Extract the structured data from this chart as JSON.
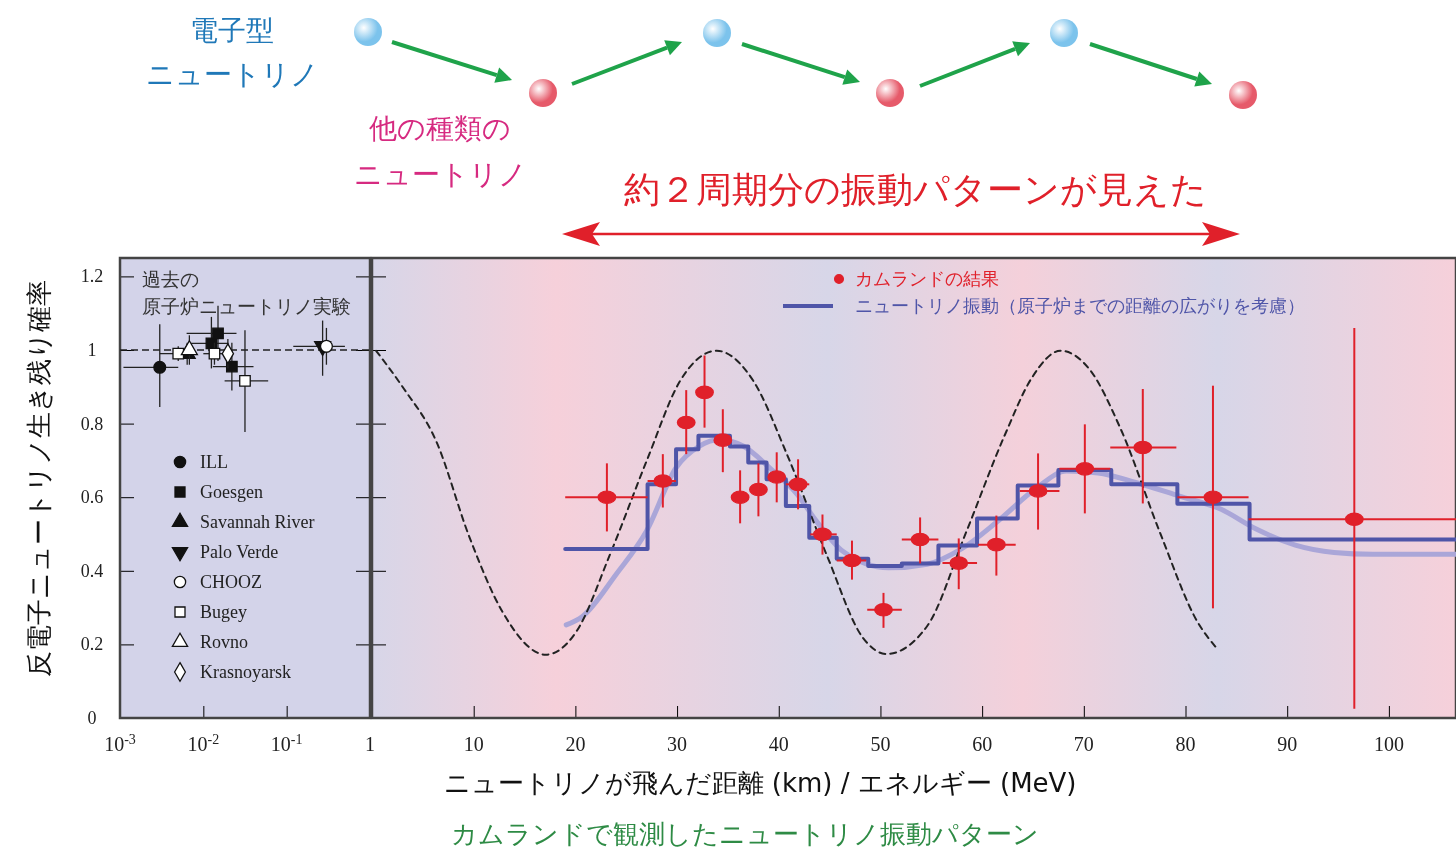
{
  "chart_data": [
    {
      "type": "scatter",
      "title": "過去の原子炉ニュートリノ実験",
      "ylabel": "反電子ニュートリノ生き残り確率",
      "log": "x",
      "xlim": [
        0.001,
        1
      ],
      "xticks": [
        {
          "value": 0.001,
          "label": "10$^{-3}$"
        },
        {
          "value": 0.01,
          "label": "10$^{-2}$"
        },
        {
          "value": 0.1,
          "label": "10$^{-1}$"
        },
        1
      ],
      "ylim": [
        0,
        1.25
      ],
      "yticks": [
        0,
        0.2,
        0.4,
        0.6,
        0.8,
        1,
        1.2
      ],
      "ref_lines": [
        {
          "axis": "y",
          "value": 1,
          "line_style": "dashed"
        }
      ],
      "legend": "bottom left",
      "series": [
        {
          "name": "ILL",
          "color": "#111111",
          "marker": "circle",
          "x": [
            0.003
          ],
          "values": [
            0.953
          ],
          "errors": [
            [
              0.845,
              1.07
            ]
          ],
          "xerrors": [
            [
              0.0011,
              0.005
            ]
          ]
        },
        {
          "name": "Goesgen",
          "color": "#111111",
          "marker": "square",
          "x": [
            0.0125,
            0.015,
            0.022
          ],
          "values": [
            1.018,
            1.045,
            0.955
          ],
          "errors": [
            [
              0.95,
              1.09
            ],
            [
              0.97,
              1.12
            ],
            [
              0.89,
              1.02
            ]
          ],
          "xerrors": [
            [
              0.007,
              0.02
            ],
            [
              0.0063,
              0.025
            ],
            [
              0.013,
              0.04
            ]
          ]
        },
        {
          "name": "Savannah River",
          "color": "#111111",
          "marker": "triangle",
          "x": [
            0.0064
          ],
          "values": [
            0.99
          ],
          "errors": [
            [
              0.96,
              1.02
            ]
          ]
        },
        {
          "name": "Palo Verde",
          "color": "#111111",
          "marker": "triangle-down",
          "x": [
            0.27
          ],
          "values": [
            1.01
          ],
          "errors": [
            [
              0.93,
              1.08
            ]
          ],
          "xerrors": [
            [
              0.12,
              0.5
            ]
          ]
        },
        {
          "name": "CHOOZ",
          "color": "#ffffff",
          "marker": "circle",
          "x": [
            0.3
          ],
          "values": [
            1.01
          ],
          "errors": [
            [
              0.96,
              1.06
            ]
          ]
        },
        {
          "name": "Bugey",
          "color": "#ffffff",
          "marker": "square",
          "x": [
            0.005,
            0.0136,
            0.0316
          ],
          "values": [
            0.99,
            0.99,
            0.916
          ],
          "errors": [
            [
              0.97,
              1.01
            ],
            [
              0.96,
              1.02
            ],
            [
              0.777,
              1.054
            ]
          ],
          "xerrors": [
            [
              0.003,
              0.008
            ],
            [
              0.01,
              0.018
            ],
            [
              0.018,
              0.06
            ]
          ]
        },
        {
          "name": "Rovno",
          "color": "#ffffff",
          "marker": "triangle",
          "x": [
            0.0068
          ],
          "values": [
            1.0
          ],
          "errors": [
            [
              0.96,
              1.04
            ]
          ]
        },
        {
          "name": "Krasnoyarsk",
          "color": "#ffffff",
          "marker": "diamond",
          "x": [
            0.0197
          ],
          "values": [
            0.99
          ],
          "errors": [
            [
              0.95,
              1.03
            ]
          ]
        }
      ]
    },
    {
      "type": "line",
      "xlabel": "ニュートリノが飛んだ距離 (km) / エネルギー (MeV)",
      "xlim": [
        0,
        106.6
      ],
      "xticks": [
        10,
        20,
        30,
        40,
        50,
        60,
        70,
        80,
        90,
        100
      ],
      "ylim": [
        0,
        1.25
      ],
      "yticks": [
        0,
        0.2,
        0.4,
        0.6,
        0.8,
        1,
        1.2
      ],
      "tick_labels": "x",
      "legend": "top right",
      "annotations": [
        "電子型ニュートリノ",
        "他の種類のニュートリノ",
        "約２周期分の振動パターンが見えた",
        "カムランドで観測したニュートリノ振動パターン"
      ],
      "series": [
        {
          "type": "line",
          "color": "#aaa6d8",
          "x": [
            19.1,
            20.7,
            24.0,
            27.0,
            29.9,
            32.2,
            34.2,
            36.5,
            39.1,
            41.8,
            43.7,
            46.3,
            50.8,
            54.6,
            58.0,
            61.5,
            65.3,
            68.3,
            71.4,
            75.1,
            79.4,
            83.5,
            86.9,
            90.8,
            94.6,
            98.4,
            106.6
          ],
          "values": [
            0.253,
            0.276,
            0.39,
            0.508,
            0.68,
            0.739,
            0.757,
            0.739,
            0.68,
            0.608,
            0.535,
            0.453,
            0.408,
            0.418,
            0.46,
            0.534,
            0.624,
            0.671,
            0.666,
            0.64,
            0.603,
            0.567,
            0.514,
            0.47,
            0.45,
            0.445,
            0.445
          ]
        },
        {
          "type": "line",
          "color": "#222222",
          "line_style": "dashed",
          "x": [
            0.4,
            3.0,
            6.3,
            9.6,
            12.8,
            17.1,
            20.1,
            23.4,
            27.0,
            30.3,
            33.9,
            37.5,
            40.8,
            44.7,
            48.3,
            50.6,
            54.6,
            58.4,
            62.2,
            64.9,
            67.7,
            70.6,
            73.6,
            77.5,
            81.2,
            83.0
          ],
          "values": [
            0.998,
            0.9,
            0.753,
            0.49,
            0.29,
            0.172,
            0.235,
            0.444,
            0.698,
            0.916,
            0.998,
            0.916,
            0.717,
            0.444,
            0.217,
            0.174,
            0.25,
            0.503,
            0.767,
            0.925,
            0.998,
            0.946,
            0.787,
            0.503,
            0.26,
            0.192
          ]
        },
        {
          "type": "step",
          "name": "ニュートリノ振動（原子炉までの距離の広がりを考慮）",
          "color": "#4f55a8",
          "x": [
            19.0,
            27.1,
            29.9,
            32.1,
            35.2,
            37.0,
            38.8,
            40.7,
            43.0,
            45.7,
            48.8,
            52.1,
            55.7,
            59.5,
            63.5,
            67.5,
            72.7,
            79.2,
            86.3,
            106.6
          ],
          "values": [
            0.459,
            0.635,
            0.73,
            0.767,
            0.738,
            0.694,
            0.649,
            0.576,
            0.49,
            0.433,
            0.413,
            0.42,
            0.469,
            0.542,
            0.632,
            0.674,
            0.635,
            0.582,
            0.485,
            0.485
          ]
        },
        {
          "type": "scatter",
          "name": "カムランドの結果",
          "color": "#e0202a",
          "marker": "circle",
          "x": [
            23.1,
            28.6,
            30.9,
            32.7,
            34.5,
            36.2,
            38.0,
            39.8,
            41.9,
            44.3,
            47.2,
            50.3,
            53.9,
            57.7,
            61.4,
            65.5,
            70.1,
            75.8,
            82.7,
            96.6
          ],
          "values": [
            0.6,
            0.644,
            0.803,
            0.885,
            0.755,
            0.6,
            0.621,
            0.655,
            0.635,
            0.499,
            0.428,
            0.294,
            0.485,
            0.421,
            0.471,
            0.617,
            0.677,
            0.735,
            0.6,
            0.54
          ],
          "errors": [
            [
              0.507,
              0.692
            ],
            [
              0.572,
              0.717
            ],
            [
              0.717,
              0.891
            ],
            [
              0.789,
              0.985
            ],
            [
              0.668,
              0.839
            ],
            [
              0.529,
              0.673
            ],
            [
              0.548,
              0.692
            ],
            [
              0.586,
              0.722
            ],
            [
              0.567,
              0.703
            ],
            [
              0.444,
              0.553
            ],
            [
              0.376,
              0.482
            ],
            [
              0.245,
              0.34
            ],
            [
              0.42,
              0.545
            ],
            [
              0.35,
              0.488
            ],
            [
              0.387,
              0.55
            ],
            [
              0.512,
              0.719
            ],
            [
              0.556,
              0.798
            ],
            [
              0.583,
              0.894
            ],
            [
              0.298,
              0.903
            ],
            [
              0.025,
              1.06
            ]
          ],
          "xerrors": [
            [
              19.0,
              27.1
            ],
            [
              27.1,
              29.9
            ],
            null,
            null,
            null,
            null,
            null,
            null,
            [
              40.7,
              43.0
            ],
            [
              43.1,
              45.7
            ],
            [
              45.7,
              48.6
            ],
            [
              48.7,
              52.1
            ],
            [
              52.1,
              55.7
            ],
            [
              56.1,
              59.5
            ],
            [
              59.6,
              63.3
            ],
            [
              63.7,
              67.6
            ],
            [
              67.6,
              72.6
            ],
            [
              72.6,
              79.1
            ],
            [
              79.2,
              86.2
            ],
            [
              86.2,
              106.6
            ]
          ]
        }
      ]
    }
  ]
}
